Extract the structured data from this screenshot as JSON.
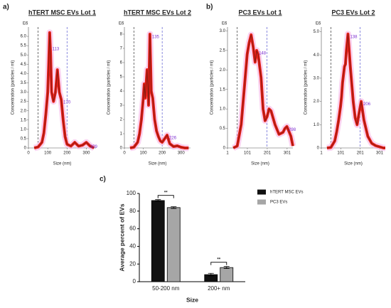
{
  "panel_labels": [
    "a)",
    "b)",
    "c)"
  ],
  "chart_data": [
    {
      "type": "line",
      "title": "hTERT MSC EVs Lot 1",
      "unit_label": "E6",
      "xlabel": "Size (nm)",
      "ylabel": "Concentration (particles / ml)",
      "xlim": [
        0,
        350
      ],
      "xticks": [
        0,
        100,
        200,
        300
      ],
      "ylim": [
        0,
        6.5
      ],
      "yticks": [
        0,
        0.5,
        {
          "value": 1,
          "label": "1.0"
        },
        1.5,
        {
          "value": 2,
          "label": "2.0"
        },
        2.5,
        {
          "value": 3,
          "label": "3.0"
        },
        3.5,
        {
          "value": 4,
          "label": "4.0"
        },
        4.5,
        {
          "value": 5,
          "label": "5.0"
        },
        5.5,
        {
          "value": 6,
          "label": "6.0"
        }
      ],
      "vlines": [
        50,
        200
      ],
      "x": [
        30,
        50,
        70,
        80,
        90,
        100,
        105,
        110,
        115,
        120,
        130,
        140,
        150,
        160,
        170,
        180,
        190,
        200,
        220,
        240,
        260,
        280,
        300,
        320,
        340
      ],
      "series": [
        {
          "color": "#8b1a10",
          "values": [
            0,
            0.05,
            0.3,
            0.8,
            1.8,
            3.0,
            4.5,
            6.2,
            5.0,
            3.0,
            2.5,
            3.0,
            4.2,
            3.0,
            2.6,
            1.5,
            0.6,
            0.2,
            0.1,
            0.3,
            0.1,
            0.15,
            0.3,
            0.1,
            0
          ]
        }
      ],
      "annotations": [
        {
          "x": 113,
          "text": "113"
        },
        {
          "x": 170,
          "text": "170"
        },
        {
          "x": 309,
          "text": "309"
        }
      ]
    },
    {
      "type": "line",
      "title": "hTERT MSC EVs Lot 2",
      "unit_label": "E6",
      "xlabel": "Size (nm)",
      "ylabel": "Concentration (particles / ml)",
      "xlim": [
        0,
        350
      ],
      "xticks": [
        0,
        100,
        200,
        300
      ],
      "ylim": [
        0,
        8.5
      ],
      "yticks": [
        0,
        1,
        2,
        3,
        4,
        5,
        6,
        7,
        8
      ],
      "vlines": [
        50,
        200
      ],
      "x": [
        30,
        50,
        70,
        80,
        90,
        100,
        105,
        110,
        120,
        128,
        135,
        142,
        150,
        160,
        170,
        180,
        190,
        200,
        226,
        240,
        260,
        280,
        300,
        320,
        340
      ],
      "series": [
        {
          "color": "#8b1a10",
          "values": [
            0,
            0.05,
            0.4,
            1.0,
            2.0,
            3.5,
            4.5,
            3.5,
            5.5,
            3.0,
            8.0,
            4.0,
            3.5,
            2.0,
            1.2,
            0.8,
            0.5,
            0.4,
            0.9,
            0.3,
            0.1,
            0.15,
            0.05,
            0,
            0
          ]
        }
      ],
      "annotations": [
        {
          "x": 135,
          "text": "135"
        },
        {
          "x": 226,
          "text": "226"
        }
      ]
    },
    {
      "type": "line",
      "title": "PC3 EVs Lot 1",
      "unit_label": "E6",
      "xlabel": "Size (nm)",
      "ylabel": "Concentration (particles / ml)",
      "xlim": [
        1,
        330
      ],
      "xticks": [
        1,
        101,
        201,
        301
      ],
      "ylim": [
        0,
        3.1
      ],
      "yticks": [
        0,
        0.5,
        {
          "value": 1,
          "label": "1.0"
        },
        1.5,
        {
          "value": 2,
          "label": "2.0"
        },
        2.5,
        {
          "value": 3,
          "label": "3.0"
        }
      ],
      "vlines": [
        50,
        200
      ],
      "x": [
        30,
        50,
        70,
        80,
        90,
        100,
        110,
        120,
        130,
        140,
        148,
        155,
        170,
        180,
        190,
        200,
        210,
        220,
        240,
        260,
        280,
        290,
        300,
        320,
        330
      ],
      "series": [
        {
          "color": "#8b1a10",
          "values": [
            0,
            0.05,
            0.6,
            1.2,
            1.8,
            2.4,
            2.7,
            2.9,
            2.6,
            2.2,
            2.5,
            2.4,
            1.8,
            1.0,
            0.7,
            0.8,
            1.0,
            0.95,
            0.6,
            0.35,
            0.4,
            0.5,
            0.55,
            0.3,
            0.05
          ]
        }
      ],
      "annotations": [
        {
          "x": 148,
          "text": "148"
        },
        {
          "x": 298,
          "text": "298"
        }
      ]
    },
    {
      "type": "line",
      "title": "PC3 EVs Lot 2",
      "unit_label": "E6",
      "xlabel": "Size (nm)",
      "ylabel": "Concentration (particles / ml)",
      "xlim": [
        1,
        330
      ],
      "xticks": [
        1,
        101,
        201,
        301
      ],
      "ylim": [
        0,
        5.2
      ],
      "yticks": [
        0,
        {
          "value": 1,
          "label": "1.0"
        },
        {
          "value": 2,
          "label": "2.0"
        },
        {
          "value": 3,
          "label": "3.0"
        },
        {
          "value": 4,
          "label": "4.0"
        },
        {
          "value": 5,
          "label": "5.0"
        }
      ],
      "vlines": [
        50,
        200
      ],
      "x": [
        30,
        50,
        70,
        80,
        90,
        100,
        105,
        110,
        120,
        125,
        130,
        138,
        150,
        165,
        175,
        185,
        195,
        206,
        220,
        240,
        260,
        280,
        300,
        320,
        330
      ],
      "series": [
        {
          "color": "#8b1a10",
          "values": [
            0,
            0.02,
            0.3,
            0.7,
            1.2,
            1.8,
            2.2,
            2.8,
            3.5,
            3.6,
            4.2,
            4.9,
            3.5,
            2.0,
            1.3,
            1.0,
            1.5,
            2.0,
            1.2,
            0.5,
            0.2,
            0.1,
            0.05,
            0,
            0
          ]
        }
      ],
      "annotations": [
        {
          "x": 138,
          "text": "138"
        },
        {
          "x": 206,
          "text": "206"
        }
      ]
    },
    {
      "type": "bar",
      "xlabel": "Size",
      "ylabel": "Average percent of EVs",
      "categories": [
        "50-200 nm",
        "200+ nm"
      ],
      "ylim": [
        0,
        100
      ],
      "yticks": [
        0,
        20,
        40,
        60,
        80,
        100
      ],
      "series": [
        {
          "name": "hTERT MSC EVs",
          "color": "#111111",
          "values": [
            92,
            8
          ],
          "errors": [
            1,
            1.5
          ]
        },
        {
          "name": "PC3 EVs",
          "color": "#a6a6a6",
          "values": [
            84,
            16
          ],
          "errors": [
            1,
            1.2
          ]
        }
      ],
      "significance": [
        "**",
        "**"
      ]
    }
  ]
}
